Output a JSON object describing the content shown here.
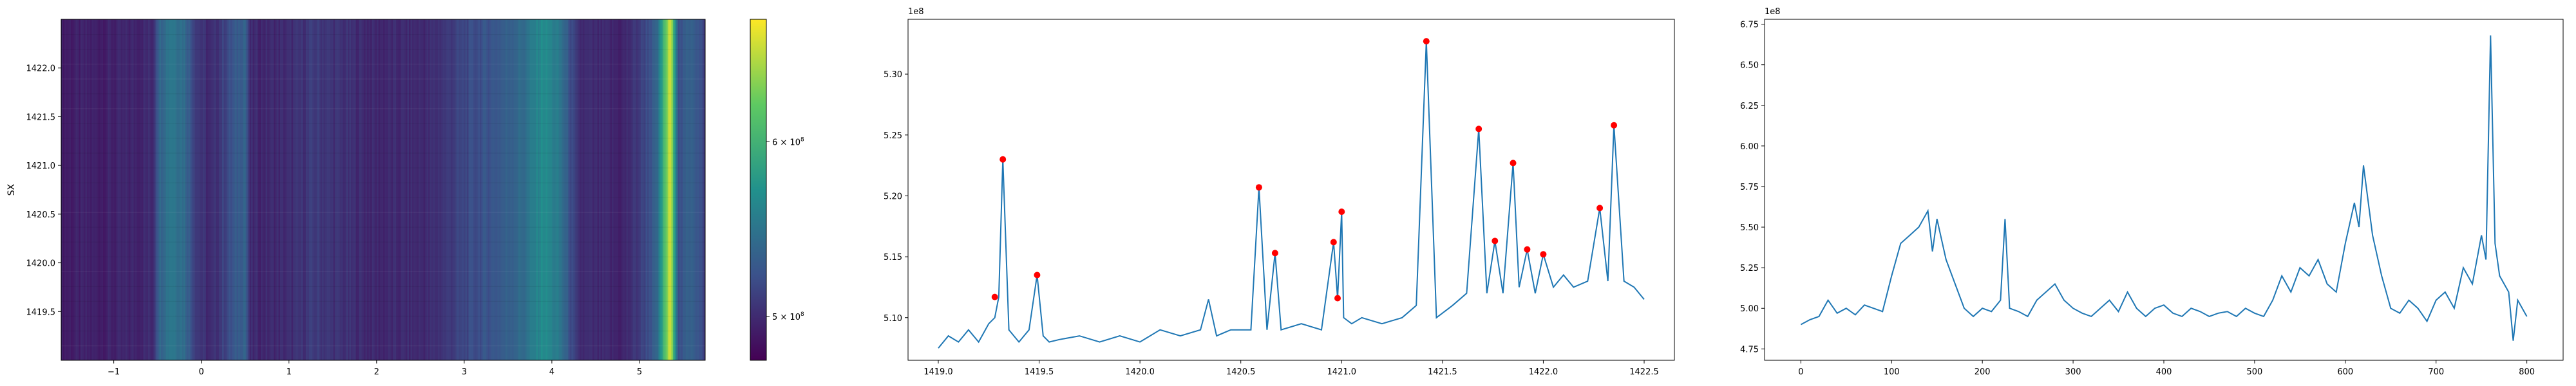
{
  "chart_data": [
    {
      "type": "heatmap",
      "title": "",
      "xlabel": "",
      "ylabel": "SX",
      "xlim": [
        -1.6,
        5.75
      ],
      "ylim": [
        1419.0,
        1422.5
      ],
      "x_ticks": [
        -1,
        0,
        1,
        2,
        3,
        4,
        5
      ],
      "x_tick_labels": [
        "−1",
        "0",
        "1",
        "2",
        "3",
        "4",
        "5"
      ],
      "y_ticks": [
        1419.5,
        1420.0,
        1420.5,
        1421.0,
        1421.5,
        1422.0
      ],
      "y_tick_labels": [
        "1419.5",
        "1420.0",
        "1420.5",
        "1421.0",
        "1421.5",
        "1422.0"
      ],
      "colormap": "viridis",
      "colorbar": {
        "vmin": 475000000.0,
        "vmax": 670000000.0,
        "ticks": [
          500000000.0,
          600000000.0
        ],
        "tick_labels": [
          "5 × 10",
          "6 × 10"
        ],
        "tick_exponent": "8"
      },
      "column_profile": [
        {
          "x": -1.6,
          "v": 492000000.0
        },
        {
          "x": -0.9,
          "v": 495000000.0
        },
        {
          "x": -0.55,
          "v": 500000000.0
        },
        {
          "x": -0.5,
          "v": 535000000.0
        },
        {
          "x": -0.35,
          "v": 555000000.0
        },
        {
          "x": -0.2,
          "v": 545000000.0
        },
        {
          "x": -0.05,
          "v": 510000000.0
        },
        {
          "x": 0.1,
          "v": 497000000.0
        },
        {
          "x": 0.5,
          "v": 540000000.0
        },
        {
          "x": 0.55,
          "v": 498000000.0
        },
        {
          "x": 1.0,
          "v": 500000000.0
        },
        {
          "x": 1.3,
          "v": 510000000.0
        },
        {
          "x": 1.5,
          "v": 505000000.0
        },
        {
          "x": 2.0,
          "v": 498000000.0
        },
        {
          "x": 2.6,
          "v": 500000000.0
        },
        {
          "x": 3.1,
          "v": 520000000.0
        },
        {
          "x": 3.4,
          "v": 530000000.0
        },
        {
          "x": 3.7,
          "v": 545000000.0
        },
        {
          "x": 3.9,
          "v": 570000000.0
        },
        {
          "x": 4.1,
          "v": 550000000.0
        },
        {
          "x": 4.3,
          "v": 500000000.0
        },
        {
          "x": 4.8,
          "v": 495000000.0
        },
        {
          "x": 5.0,
          "v": 510000000.0
        },
        {
          "x": 5.2,
          "v": 535000000.0
        },
        {
          "x": 5.35,
          "v": 660000000.0
        },
        {
          "x": 5.45,
          "v": 520000000.0
        },
        {
          "x": 5.6,
          "v": 540000000.0
        },
        {
          "x": 5.75,
          "v": 510000000.0
        }
      ]
    },
    {
      "type": "line",
      "title": "",
      "xlabel": "",
      "ylabel": "",
      "xlim": [
        1418.85,
        1422.65
      ],
      "ylim": [
        506500000.0,
        534500000.0
      ],
      "y_offset_label": "1e8",
      "x_ticks": [
        1419.0,
        1419.5,
        1420.0,
        1420.5,
        1421.0,
        1421.5,
        1422.0,
        1422.5
      ],
      "x_tick_labels": [
        "1419.0",
        "1419.5",
        "1420.0",
        "1420.5",
        "1421.0",
        "1421.5",
        "1422.0",
        "1422.5"
      ],
      "y_ticks": [
        510000000.0,
        515000000.0,
        520000000.0,
        525000000.0,
        530000000.0
      ],
      "y_tick_labels": [
        "5.10",
        "5.15",
        "5.20",
        "5.25",
        "5.30"
      ],
      "series": [
        {
          "color": "#1f77b4",
          "x": [
            1419.0,
            1419.05,
            1419.1,
            1419.15,
            1419.2,
            1419.25,
            1419.28,
            1419.3,
            1419.32,
            1419.35,
            1419.4,
            1419.45,
            1419.49,
            1419.52,
            1419.55,
            1419.6,
            1419.7,
            1419.8,
            1419.9,
            1420.0,
            1420.1,
            1420.2,
            1420.3,
            1420.34,
            1420.38,
            1420.45,
            1420.55,
            1420.59,
            1420.63,
            1420.67,
            1420.7,
            1420.8,
            1420.9,
            1420.96,
            1420.98,
            1421.0,
            1421.01,
            1421.05,
            1421.1,
            1421.2,
            1421.3,
            1421.37,
            1421.42,
            1421.47,
            1421.55,
            1421.62,
            1421.68,
            1421.72,
            1421.76,
            1421.8,
            1421.85,
            1421.88,
            1421.92,
            1421.96,
            1422.0,
            1422.05,
            1422.1,
            1422.15,
            1422.22,
            1422.28,
            1422.32,
            1422.35,
            1422.4,
            1422.45,
            1422.5
          ],
          "y": [
            507500000.0,
            508500000.0,
            508000000.0,
            509000000.0,
            508000000.0,
            509500000.0,
            510000000.0,
            511700000.0,
            523000000.0,
            509000000.0,
            508000000.0,
            509000000.0,
            513500000.0,
            508500000.0,
            508000000.0,
            508200000.0,
            508500000.0,
            508000000.0,
            508500000.0,
            508000000.0,
            509000000.0,
            508500000.0,
            509000000.0,
            511500000.0,
            508500000.0,
            509000000.0,
            509000000.0,
            520700000.0,
            509000000.0,
            515300000.0,
            509000000.0,
            509500000.0,
            509000000.0,
            516200000.0,
            511600000.0,
            518700000.0,
            510000000.0,
            509500000.0,
            510000000.0,
            509500000.0,
            510000000.0,
            511000000.0,
            532700000.0,
            510000000.0,
            511000000.0,
            512000000.0,
            525500000.0,
            512000000.0,
            516300000.0,
            512000000.0,
            522700000.0,
            512500000.0,
            515600000.0,
            512000000.0,
            515200000.0,
            512500000.0,
            513500000.0,
            512500000.0,
            513000000.0,
            519000000.0,
            513000000.0,
            525800000.0,
            513000000.0,
            512500000.0,
            511500000.0
          ]
        }
      ],
      "peaks": {
        "color": "#ff0000",
        "x": [
          1419.28,
          1419.32,
          1419.49,
          1420.59,
          1420.67,
          1420.96,
          1420.98,
          1421.0,
          1421.42,
          1421.68,
          1421.76,
          1421.85,
          1421.92,
          1422.0,
          1422.28,
          1422.35
        ],
        "y": [
          511700000.0,
          523000000.0,
          513500000.0,
          520700000.0,
          515300000.0,
          516200000.0,
          511600000.0,
          518700000.0,
          532700000.0,
          525500000.0,
          516300000.0,
          522700000.0,
          515600000.0,
          515200000.0,
          519000000.0,
          525800000.0
        ]
      }
    },
    {
      "type": "line",
      "title": "",
      "xlabel": "",
      "ylabel": "",
      "xlim": [
        -40,
        840
      ],
      "ylim": [
        468000000.0,
        678000000.0
      ],
      "y_offset_label": "1e8",
      "x_ticks": [
        0,
        100,
        200,
        300,
        400,
        500,
        600,
        700,
        800
      ],
      "x_tick_labels": [
        "0",
        "100",
        "200",
        "300",
        "400",
        "500",
        "600",
        "700",
        "800"
      ],
      "y_ticks": [
        475000000.0,
        500000000.0,
        525000000.0,
        550000000.0,
        575000000.0,
        600000000.0,
        625000000.0,
        650000000.0,
        675000000.0
      ],
      "y_tick_labels": [
        "4.75",
        "5.00",
        "5.25",
        "5.50",
        "5.75",
        "6.00",
        "6.25",
        "6.50",
        "6.75"
      ],
      "series": [
        {
          "color": "#1f77b4",
          "x": [
            0,
            10,
            20,
            30,
            40,
            50,
            60,
            70,
            80,
            90,
            100,
            110,
            120,
            130,
            140,
            145,
            150,
            160,
            170,
            180,
            190,
            200,
            210,
            220,
            225,
            230,
            240,
            250,
            260,
            270,
            280,
            290,
            300,
            310,
            320,
            330,
            340,
            350,
            360,
            370,
            380,
            390,
            400,
            410,
            420,
            430,
            440,
            450,
            460,
            470,
            480,
            490,
            500,
            510,
            520,
            530,
            540,
            550,
            560,
            570,
            580,
            590,
            600,
            610,
            615,
            620,
            630,
            640,
            650,
            660,
            670,
            680,
            690,
            700,
            710,
            720,
            730,
            740,
            750,
            755,
            760,
            765,
            770,
            780,
            785,
            790,
            800
          ],
          "y": [
            490000000.0,
            493000000.0,
            495000000.0,
            505000000.0,
            497000000.0,
            500000000.0,
            496000000.0,
            502000000.0,
            500000000.0,
            498000000.0,
            520000000.0,
            540000000.0,
            545000000.0,
            550000000.0,
            560000000.0,
            535000000.0,
            555000000.0,
            530000000.0,
            515000000.0,
            500000000.0,
            495000000.0,
            500000000.0,
            498000000.0,
            505000000.0,
            555000000.0,
            500000000.0,
            498000000.0,
            495000000.0,
            505000000.0,
            510000000.0,
            515000000.0,
            505000000.0,
            500000000.0,
            497000000.0,
            495000000.0,
            500000000.0,
            505000000.0,
            498000000.0,
            510000000.0,
            500000000.0,
            495000000.0,
            500000000.0,
            502000000.0,
            497000000.0,
            495000000.0,
            500000000.0,
            498000000.0,
            495000000.0,
            497000000.0,
            498000000.0,
            495000000.0,
            500000000.0,
            497000000.0,
            495000000.0,
            505000000.0,
            520000000.0,
            510000000.0,
            525000000.0,
            520000000.0,
            530000000.0,
            515000000.0,
            510000000.0,
            540000000.0,
            565000000.0,
            550000000.0,
            588000000.0,
            545000000.0,
            520000000.0,
            500000000.0,
            497000000.0,
            505000000.0,
            500000000.0,
            492000000.0,
            505000000.0,
            510000000.0,
            500000000.0,
            525000000.0,
            515000000.0,
            545000000.0,
            530000000.0,
            668000000.0,
            540000000.0,
            520000000.0,
            510000000.0,
            480000000.0,
            505000000.0,
            495000000.0
          ]
        }
      ]
    }
  ]
}
